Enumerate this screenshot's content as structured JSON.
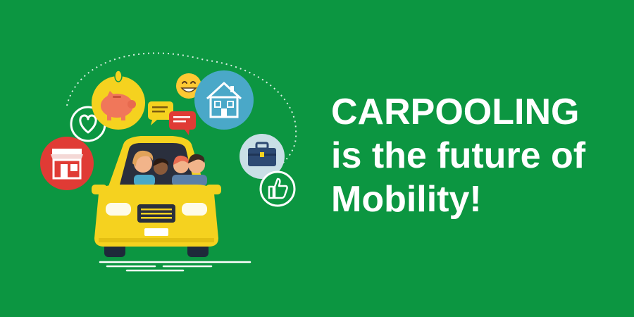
{
  "headline": {
    "line1": "CARPOOLING",
    "line2": "is the future of",
    "line3": "Mobility!"
  },
  "colors": {
    "background": "#0c9641",
    "car_body": "#f5d21f",
    "text": "#ffffff",
    "shop_circle": "#e03b35",
    "piggy_circle": "#f5d21f",
    "house_circle": "#4aa8c8",
    "briefcase_circle": "#c9dfe6"
  },
  "icons": [
    "heart-icon",
    "shop-icon",
    "piggy-bank-icon",
    "smiley-icon",
    "chat-bubble-icon",
    "house-icon",
    "briefcase-icon",
    "thumbs-up-icon"
  ]
}
